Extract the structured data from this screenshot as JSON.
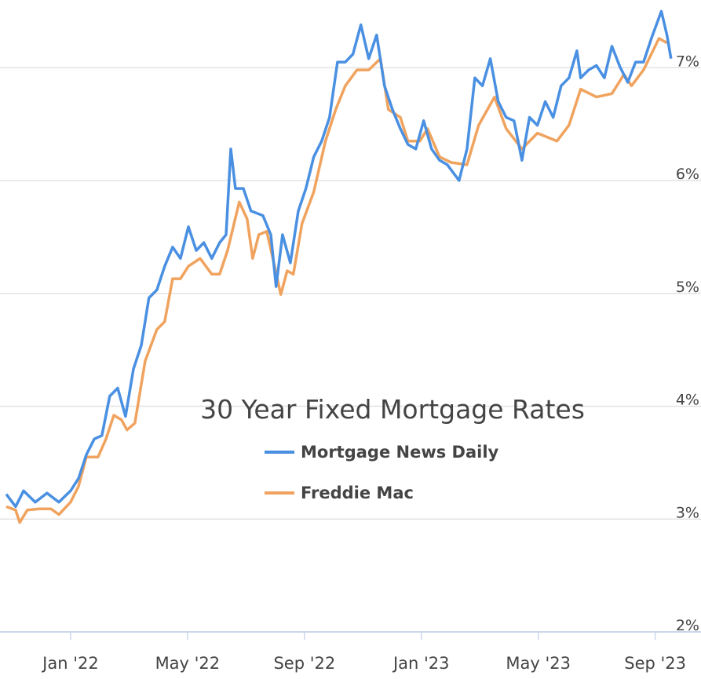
{
  "chart_data": {
    "type": "line",
    "title": "30 Year Fixed Mortgage Rates",
    "legend": "center",
    "grid": true,
    "xlim": [
      -2.2,
      20.6
    ],
    "ylim": [
      2,
      7.6
    ],
    "xticks": [
      {
        "value": 0,
        "label": "Jan '22"
      },
      {
        "value": 4,
        "label": "May '22"
      },
      {
        "value": 8,
        "label": "Sep '22"
      },
      {
        "value": 12,
        "label": "Jan '23"
      },
      {
        "value": 16,
        "label": "May '23"
      },
      {
        "value": 20,
        "label": "Sep '23"
      }
    ],
    "yticks": [
      {
        "value": 2,
        "label": "2%"
      },
      {
        "value": 3,
        "label": "3%"
      },
      {
        "value": 4,
        "label": "4%"
      },
      {
        "value": 5,
        "label": "5%"
      },
      {
        "value": 6,
        "label": "6%"
      },
      {
        "value": 7,
        "label": "7%"
      }
    ],
    "series": [
      {
        "name": "Mortgage News Daily",
        "color": "#4a90e2",
        "x": [
          -2.2,
          -1.88,
          -1.61,
          -1.21,
          -0.81,
          -0.4,
          0,
          0.27,
          0.54,
          0.81,
          1.07,
          1.34,
          1.61,
          1.88,
          2.15,
          2.42,
          2.68,
          2.95,
          3.22,
          3.49,
          3.76,
          4.03,
          4.3,
          4.56,
          4.83,
          5.1,
          5.32,
          5.48,
          5.64,
          5.91,
          6.17,
          6.58,
          6.85,
          7.03,
          7.25,
          7.52,
          7.79,
          8.05,
          8.32,
          8.59,
          8.86,
          9.13,
          9.4,
          9.66,
          9.93,
          10.2,
          10.47,
          10.74,
          11.01,
          11.28,
          11.54,
          11.81,
          12.08,
          12.35,
          12.62,
          12.89,
          13.29,
          13.56,
          13.83,
          14.09,
          14.36,
          14.63,
          14.9,
          15.17,
          15.44,
          15.7,
          15.97,
          16.24,
          16.51,
          16.78,
          17.05,
          17.32,
          17.45,
          17.72,
          17.99,
          18.26,
          18.52,
          18.79,
          19.06,
          19.33,
          19.6,
          19.87,
          20.21,
          20.4,
          20.54
        ],
        "values": [
          3.22,
          3.11,
          3.25,
          3.15,
          3.23,
          3.15,
          3.25,
          3.36,
          3.57,
          3.71,
          3.74,
          4.09,
          4.16,
          3.91,
          4.33,
          4.54,
          4.96,
          5.03,
          5.24,
          5.41,
          5.31,
          5.59,
          5.38,
          5.45,
          5.31,
          5.45,
          5.52,
          6.28,
          5.93,
          5.93,
          5.73,
          5.69,
          5.52,
          5.06,
          5.52,
          5.27,
          5.73,
          5.93,
          6.21,
          6.35,
          6.56,
          7.05,
          7.05,
          7.12,
          7.38,
          7.08,
          7.29,
          6.84,
          6.63,
          6.46,
          6.32,
          6.28,
          6.53,
          6.28,
          6.18,
          6.14,
          6.0,
          6.28,
          6.91,
          6.84,
          7.08,
          6.7,
          6.56,
          6.53,
          6.18,
          6.56,
          6.49,
          6.7,
          6.56,
          6.84,
          6.91,
          7.15,
          6.91,
          6.98,
          7.02,
          6.91,
          7.19,
          7.01,
          6.87,
          7.05,
          7.05,
          7.26,
          7.5,
          7.29,
          7.08
        ]
      },
      {
        "name": "Freddie Mac",
        "color": "#f0a35e",
        "x": [
          -2.2,
          -1.88,
          -1.74,
          -1.48,
          -1.07,
          -0.67,
          -0.4,
          0,
          0.27,
          0.54,
          0.94,
          1.21,
          1.48,
          1.74,
          1.93,
          2.2,
          2.55,
          2.95,
          3.22,
          3.49,
          3.76,
          4.03,
          4.43,
          4.83,
          5.1,
          5.37,
          5.77,
          6.04,
          6.23,
          6.44,
          6.71,
          6.98,
          7.19,
          7.41,
          7.62,
          7.92,
          8.32,
          8.72,
          9.07,
          9.4,
          9.8,
          10.2,
          10.6,
          10.87,
          11.28,
          11.54,
          11.95,
          12.21,
          12.62,
          13.02,
          13.56,
          13.96,
          14.5,
          14.9,
          15.44,
          15.97,
          16.64,
          17.05,
          17.45,
          17.99,
          18.52,
          18.93,
          19.19,
          19.6,
          20.13,
          20.4
        ],
        "values": [
          3.11,
          3.08,
          2.97,
          3.08,
          3.09,
          3.09,
          3.04,
          3.15,
          3.29,
          3.55,
          3.55,
          3.71,
          3.92,
          3.88,
          3.79,
          3.85,
          4.4,
          4.68,
          4.75,
          5.13,
          5.13,
          5.24,
          5.31,
          5.17,
          5.17,
          5.38,
          5.81,
          5.66,
          5.31,
          5.52,
          5.55,
          5.24,
          4.99,
          5.2,
          5.17,
          5.62,
          5.9,
          6.35,
          6.63,
          6.84,
          6.98,
          6.98,
          7.08,
          6.63,
          6.56,
          6.35,
          6.35,
          6.46,
          6.21,
          6.16,
          6.14,
          6.49,
          6.74,
          6.46,
          6.28,
          6.42,
          6.35,
          6.49,
          6.81,
          6.74,
          6.77,
          6.94,
          6.84,
          6.98,
          7.26,
          7.22
        ]
      }
    ]
  }
}
